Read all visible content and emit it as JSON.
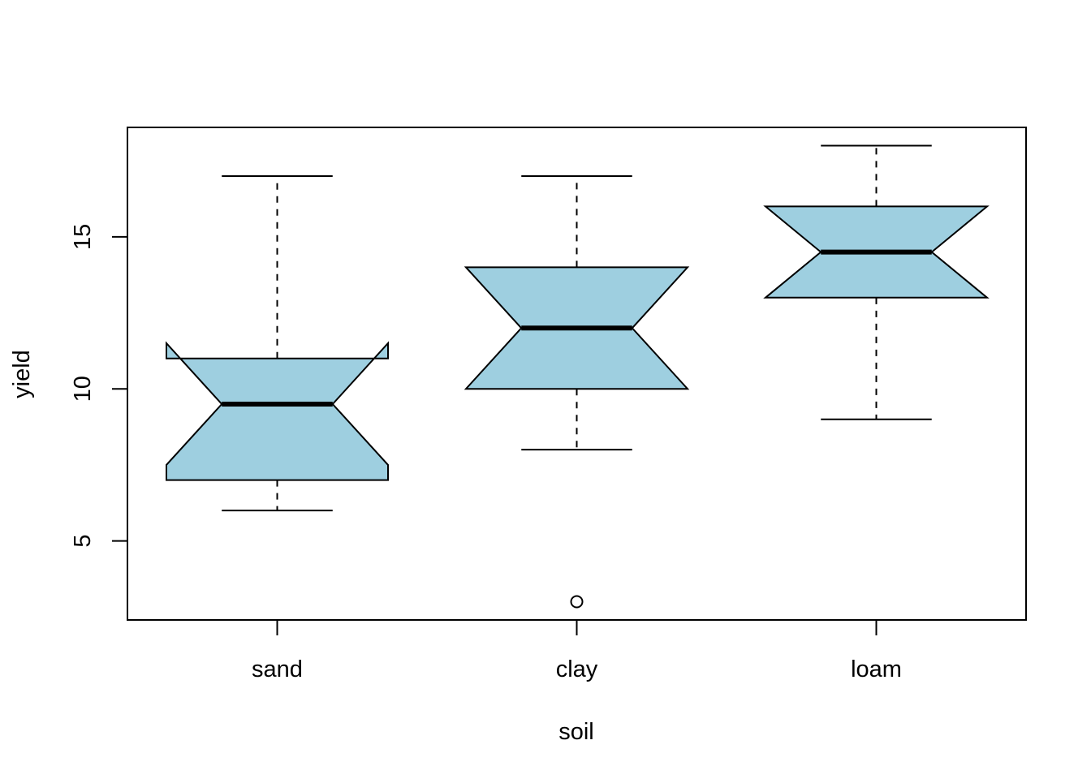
{
  "chart_data": {
    "type": "boxplot",
    "notched": true,
    "xlabel": "soil",
    "ylabel": "yield",
    "categories": [
      "sand",
      "clay",
      "loam"
    ],
    "yticks": [
      5,
      10,
      15
    ],
    "ylim": [
      2.4,
      18.6
    ],
    "box_color": "#9ecfe0",
    "boxes": [
      {
        "category": "sand",
        "whisker_low": 6,
        "q1": 7,
        "median": 9.5,
        "q3": 11,
        "whisker_high": 17,
        "notch_low": 7.5,
        "notch_high": 11.5,
        "outliers": []
      },
      {
        "category": "clay",
        "whisker_low": 8,
        "q1": 10,
        "median": 12,
        "q3": 14,
        "whisker_high": 17,
        "notch_low": 10,
        "notch_high": 14,
        "outliers": [
          3
        ]
      },
      {
        "category": "loam",
        "whisker_low": 9,
        "q1": 13,
        "median": 14.5,
        "q3": 16,
        "whisker_high": 18,
        "notch_low": 13,
        "notch_high": 16,
        "outliers": []
      }
    ]
  }
}
